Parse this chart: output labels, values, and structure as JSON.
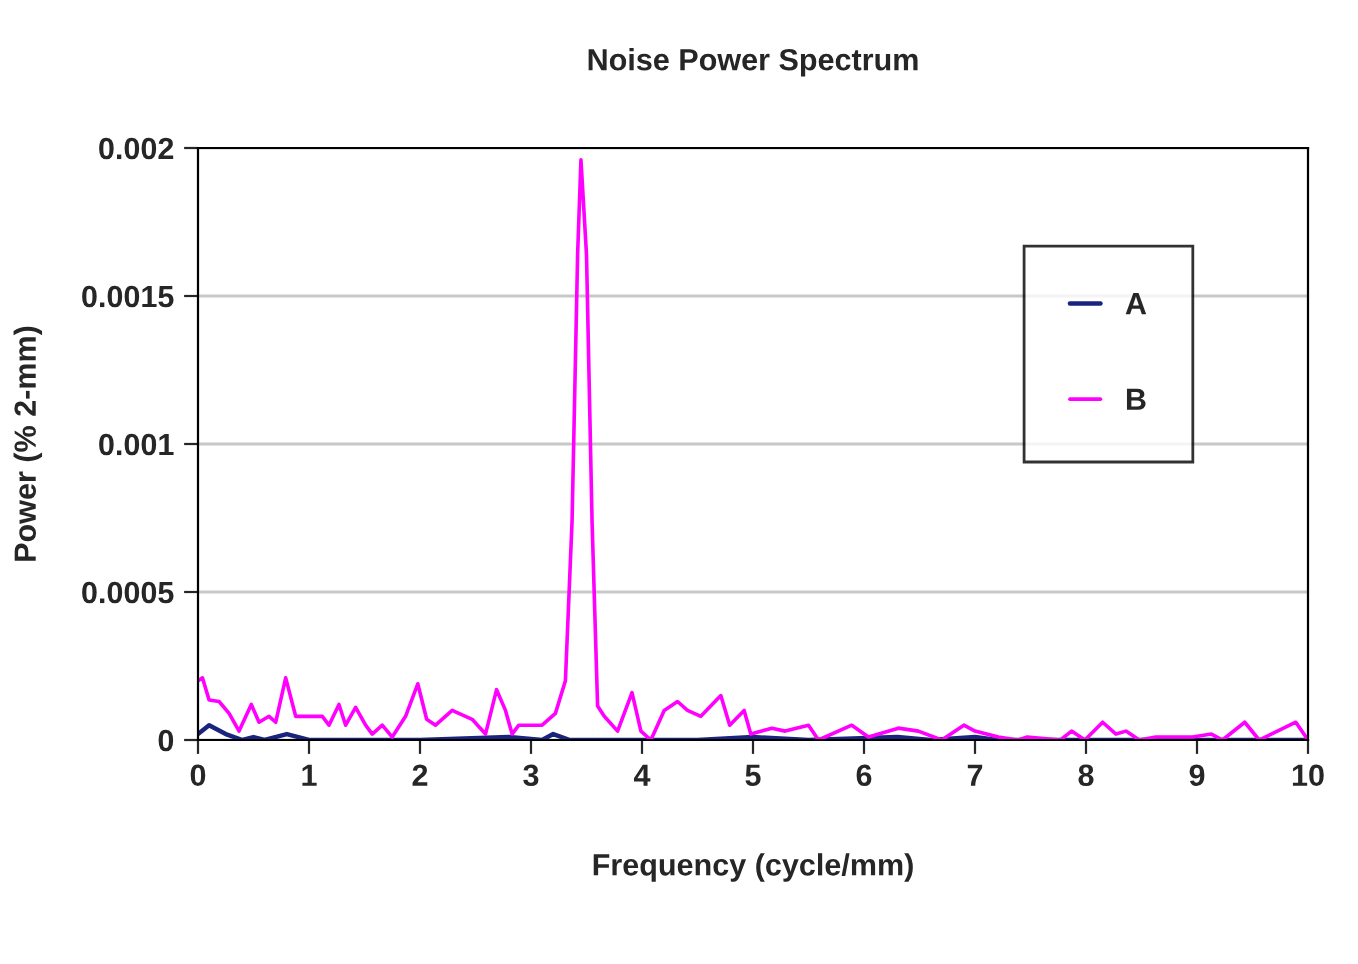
{
  "chart_data": {
    "type": "line",
    "title": "Noise Power Spectrum",
    "xlabel": "Frequency (cycle/mm)",
    "ylabel": "Power (% 2-mm)",
    "xlim": [
      0,
      10
    ],
    "xticks": [
      0,
      1,
      2,
      3,
      4,
      5,
      6,
      7,
      8,
      9,
      10
    ],
    "ylim": [
      0,
      0.002
    ],
    "yticks": [
      0,
      0.0005,
      0.001,
      0.0015,
      0.002
    ],
    "grid": "y",
    "legend": "top right",
    "marker": "none",
    "line_style": "solid",
    "series": [
      {
        "name": "A",
        "color": "#1a237e",
        "x": [
          0,
          0.1,
          0.25,
          0.4,
          0.5,
          0.6,
          0.8,
          1.0,
          2.0,
          2.8,
          3.1,
          3.2,
          3.35,
          4.5,
          5.0,
          5.5,
          6.3,
          6.6,
          7.0,
          7.2,
          10
        ],
        "values": [
          2e-05,
          5e-05,
          2e-05,
          0,
          1e-05,
          0,
          2e-05,
          0,
          0,
          1e-05,
          0,
          2e-05,
          0,
          0,
          1e-05,
          0,
          1e-05,
          0,
          1e-05,
          0,
          0
        ]
      },
      {
        "name": "B",
        "color": "#ff00ff",
        "x": [
          0,
          0.04,
          0.1,
          0.19,
          0.28,
          0.37,
          0.48,
          0.55,
          0.64,
          0.7,
          0.79,
          0.88,
          1.03,
          1.12,
          1.18,
          1.27,
          1.33,
          1.42,
          1.51,
          1.57,
          1.66,
          1.75,
          1.87,
          1.98,
          2.06,
          2.14,
          2.29,
          2.47,
          2.59,
          2.69,
          2.77,
          2.83,
          2.89,
          3.1,
          3.22,
          3.31,
          3.37,
          3.42,
          3.45,
          3.5,
          3.55,
          3.6,
          3.66,
          3.78,
          3.91,
          3.99,
          4.08,
          4.2,
          4.32,
          4.41,
          4.53,
          4.71,
          4.79,
          4.92,
          4.98,
          5.17,
          5.29,
          5.5,
          5.59,
          5.89,
          6.04,
          6.31,
          6.49,
          6.7,
          6.9,
          7.0,
          7.21,
          7.39,
          7.47,
          7.77,
          7.87,
          7.99,
          8.15,
          8.27,
          8.36,
          8.48,
          8.63,
          8.96,
          9.13,
          9.23,
          9.43,
          9.56,
          9.89,
          10
        ],
        "values": [
          0.0002,
          0.00021,
          0.000135,
          0.00013,
          9e-05,
          3e-05,
          0.00012,
          6e-05,
          8e-05,
          6e-05,
          0.00021,
          8e-05,
          8e-05,
          8e-05,
          5e-05,
          0.00012,
          5e-05,
          0.00011,
          5e-05,
          2e-05,
          5e-05,
          1e-05,
          8e-05,
          0.00019,
          7e-05,
          5e-05,
          0.0001,
          7e-05,
          2e-05,
          0.00017,
          0.0001,
          2e-05,
          5e-05,
          5e-05,
          9e-05,
          0.0002,
          0.00074,
          0.00164,
          0.00196,
          0.00164,
          0.00074,
          0.000115,
          8e-05,
          3e-05,
          0.00016,
          3e-05,
          0,
          0.0001,
          0.00013,
          0.0001,
          8e-05,
          0.00015,
          5e-05,
          0.0001,
          2e-05,
          4e-05,
          3e-05,
          5e-05,
          0,
          5e-05,
          1e-05,
          4e-05,
          3e-05,
          0,
          5e-05,
          3e-05,
          1e-05,
          0,
          1e-05,
          0,
          3e-05,
          0,
          6e-05,
          2e-05,
          3e-05,
          0,
          1e-05,
          1e-05,
          2e-05,
          0,
          6e-05,
          0,
          6e-05,
          0
        ]
      }
    ]
  }
}
